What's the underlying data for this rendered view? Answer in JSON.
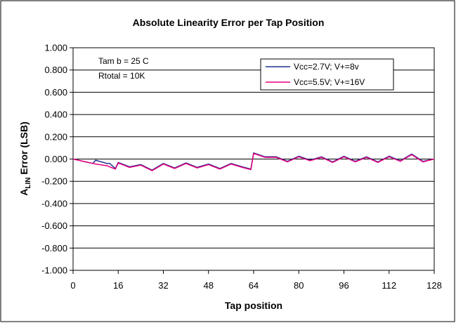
{
  "chart_data": {
    "type": "line",
    "title": "Absolute Linearity Error per Tap Position",
    "xlabel": "Tap position",
    "ylabel_main": "A",
    "ylabel_sub": "LIN",
    "ylabel_rest": " Error (LSB)",
    "xlim": [
      0,
      128
    ],
    "ylim": [
      -1.0,
      1.0
    ],
    "x_ticks": [
      0,
      16,
      32,
      48,
      64,
      80,
      96,
      112,
      128
    ],
    "x_tick_labels": [
      "0",
      "16",
      "32",
      "48",
      "64",
      "80",
      "96",
      "112",
      "128"
    ],
    "y_ticks": [
      1.0,
      0.8,
      0.6,
      0.4,
      0.2,
      0.0,
      -0.2,
      -0.4,
      -0.6,
      -0.8,
      -1.0
    ],
    "y_tick_labels": [
      "1.000",
      "0.800",
      "0.600",
      "0.400",
      "0.200",
      "0.000",
      "-0.200",
      "-0.400",
      "-0.600",
      "-0.800",
      "-1.000"
    ],
    "grid": "horizontal",
    "legend_position": "top-right",
    "annotations": [
      "Tam b = 25 C",
      "Rtotal = 10K"
    ],
    "series": [
      {
        "name": "Vcc=2.7V; V+=8v",
        "color": "#1f2f8f",
        "x": [
          0,
          7,
          8,
          12,
          13,
          15,
          16,
          20,
          24,
          28,
          32,
          36,
          40,
          44,
          48,
          52,
          56,
          60,
          63,
          64,
          68,
          72,
          76,
          80,
          84,
          88,
          92,
          96,
          100,
          104,
          108,
          112,
          116,
          120,
          124,
          128
        ],
        "y": [
          0.0,
          -0.04,
          -0.01,
          -0.04,
          -0.04,
          -0.085,
          -0.03,
          -0.07,
          -0.05,
          -0.1,
          -0.04,
          -0.08,
          -0.035,
          -0.075,
          -0.045,
          -0.085,
          -0.04,
          -0.07,
          -0.09,
          0.055,
          0.02,
          0.02,
          -0.02,
          0.025,
          -0.01,
          0.02,
          -0.025,
          0.025,
          -0.02,
          0.02,
          -0.025,
          0.025,
          -0.015,
          0.045,
          -0.02,
          0.0
        ]
      },
      {
        "name": "Vcc=5.5V; V+=16V",
        "color": "#e6007e",
        "x": [
          0,
          8,
          12,
          15,
          16,
          20,
          24,
          28,
          32,
          36,
          40,
          44,
          48,
          52,
          56,
          60,
          63,
          64,
          68,
          72,
          76,
          80,
          84,
          88,
          92,
          96,
          100,
          104,
          108,
          112,
          116,
          120,
          124,
          128
        ],
        "y": [
          0.0,
          -0.045,
          -0.06,
          -0.09,
          -0.035,
          -0.075,
          -0.055,
          -0.105,
          -0.045,
          -0.085,
          -0.04,
          -0.08,
          -0.05,
          -0.09,
          -0.045,
          -0.075,
          -0.095,
          0.05,
          0.015,
          0.015,
          -0.025,
          0.02,
          -0.015,
          0.015,
          -0.03,
          0.02,
          -0.025,
          0.015,
          -0.03,
          0.02,
          -0.02,
          0.04,
          -0.025,
          0.0
        ]
      }
    ]
  }
}
